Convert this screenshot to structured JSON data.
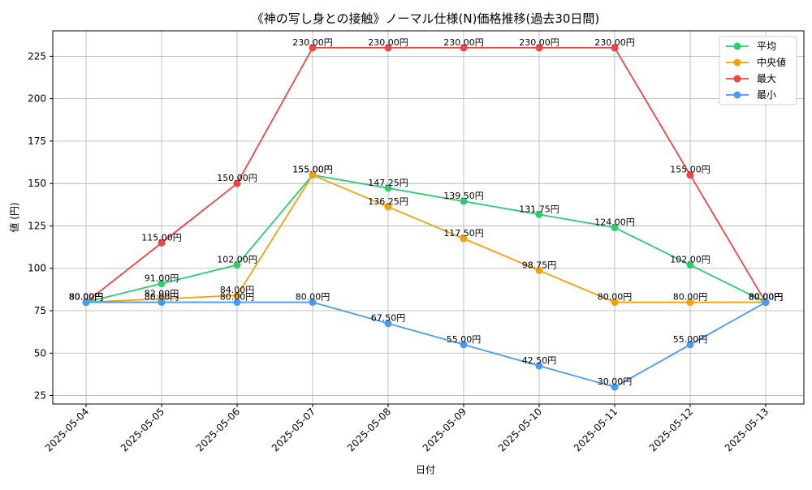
{
  "chart_data": {
    "type": "line",
    "title": "《神の写し身との接触》ノーマル仕様(N)価格推移(過去30日間)",
    "xlabel": "日付",
    "ylabel": "値 (円)",
    "categories": [
      "2025-05-04",
      "2025-05-05",
      "2025-05-06",
      "2025-05-07",
      "2025-05-08",
      "2025-05-09",
      "2025-05-10",
      "2025-05-11",
      "2025-05-12",
      "2025-05-13"
    ],
    "ylim": [
      20,
      240
    ],
    "yticks": [
      25,
      50,
      75,
      100,
      125,
      150,
      175,
      200,
      225
    ],
    "grid": true,
    "legend_position": "top-right",
    "series": [
      {
        "name": "平均",
        "color": "#2ecc71",
        "values": [
          80.0,
          91.0,
          102.0,
          155.0,
          147.25,
          139.5,
          131.75,
          124.0,
          102.0,
          80.0
        ],
        "labels": [
          "80.00円",
          "91.00円",
          "102.00円",
          "155.00円",
          "147.25円",
          "139.50円",
          "131.75円",
          "124.00円",
          "102.00円",
          "80.00円"
        ]
      },
      {
        "name": "中央値",
        "color": "#f5a00a",
        "values": [
          80.0,
          82.0,
          84.0,
          155.0,
          136.25,
          117.5,
          98.75,
          80.0,
          80.0,
          80.0
        ],
        "labels": [
          "80.00円",
          "82.00円",
          "84.00円",
          "155.00円",
          "136.25円",
          "117.50円",
          "98.75円",
          "80.00円",
          "80.00円",
          "80.00円"
        ]
      },
      {
        "name": "最大",
        "color": "#ef4444",
        "values": [
          80.0,
          115.0,
          150.0,
          230.0,
          230.0,
          230.0,
          230.0,
          230.0,
          155.0,
          80.0
        ],
        "labels": [
          "80.00円",
          "115.00円",
          "150.00円",
          "230.00円",
          "230.00円",
          "230.00円",
          "230.00円",
          "230.00円",
          "155.00円",
          "80.00円"
        ]
      },
      {
        "name": "最小",
        "color": "#4a9af5",
        "values": [
          80.0,
          80.0,
          80.0,
          80.0,
          67.5,
          55.0,
          42.5,
          30.0,
          55.0,
          80.0
        ],
        "labels": [
          "80.00円",
          "80.00円",
          "80.00円",
          "80.00円",
          "67.50円",
          "55.00円",
          "42.50円",
          "30.00円",
          "55.00円",
          "80.00円"
        ]
      }
    ]
  }
}
